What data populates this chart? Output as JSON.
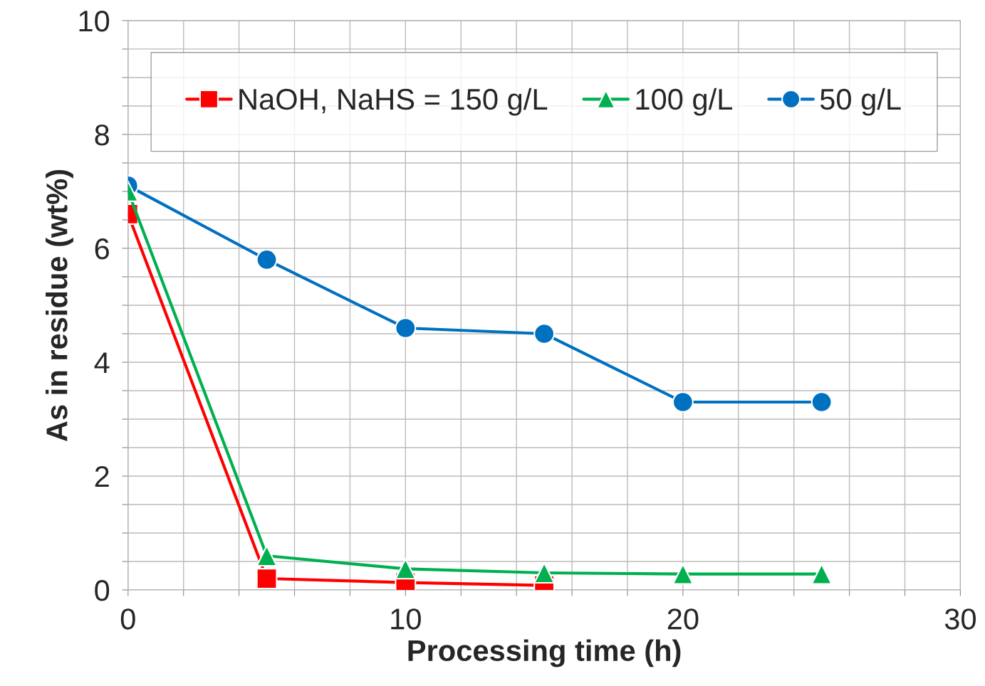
{
  "chart_data": {
    "type": "line",
    "xlabel": "Processing time (h)",
    "ylabel": "As in residue (wt%)",
    "xlim": [
      0,
      30
    ],
    "ylim": [
      0,
      10
    ],
    "xticks": [
      0,
      {
        "value": 2,
        "label": null
      },
      {
        "value": 4,
        "label": null
      },
      {
        "value": 6,
        "label": null
      },
      {
        "value": 8,
        "label": null
      },
      10,
      {
        "value": 12,
        "label": null
      },
      {
        "value": 14,
        "label": null
      },
      {
        "value": 16,
        "label": null
      },
      {
        "value": 18,
        "label": null
      },
      20,
      {
        "value": 22,
        "label": null
      },
      {
        "value": 24,
        "label": null
      },
      {
        "value": 26,
        "label": null
      },
      {
        "value": 28,
        "label": null
      },
      30
    ],
    "yticks": [
      0,
      {
        "value": 0.5,
        "label": null
      },
      {
        "value": 1,
        "label": null
      },
      {
        "value": 1.5,
        "label": null
      },
      2,
      {
        "value": 2.5,
        "label": null
      },
      {
        "value": 3,
        "label": null
      },
      {
        "value": 3.5,
        "label": null
      },
      4,
      {
        "value": 4.5,
        "label": null
      },
      {
        "value": 5,
        "label": null
      },
      {
        "value": 5.5,
        "label": null
      },
      6,
      {
        "value": 6.5,
        "label": null
      },
      {
        "value": 7,
        "label": null
      },
      {
        "value": 7.5,
        "label": null
      },
      8,
      {
        "value": 8.5,
        "label": null
      },
      {
        "value": 9,
        "label": null
      },
      {
        "value": 9.5,
        "label": null
      },
      10
    ],
    "grid": true,
    "legend": "top",
    "line_style": "solid",
    "series": [
      {
        "name": "NaOH, NaHS = 150 g/L",
        "color": "#ff0000",
        "marker": "square",
        "x": [
          0,
          5,
          10,
          15
        ],
        "values": [
          6.6,
          0.2,
          0.13,
          0.08
        ]
      },
      {
        "name": "100 g/L",
        "color": "#00b050",
        "marker": "triangle",
        "x": [
          0,
          5,
          10,
          15,
          20,
          25
        ],
        "values": [
          7.0,
          0.6,
          0.37,
          0.3,
          0.28,
          0.28
        ]
      },
      {
        "name": "50 g/L",
        "color": "#0070c0",
        "marker": "circle",
        "x": [
          0,
          5,
          10,
          15,
          20,
          25
        ],
        "values": [
          7.1,
          5.8,
          4.6,
          4.5,
          3.3,
          3.3
        ]
      }
    ]
  }
}
